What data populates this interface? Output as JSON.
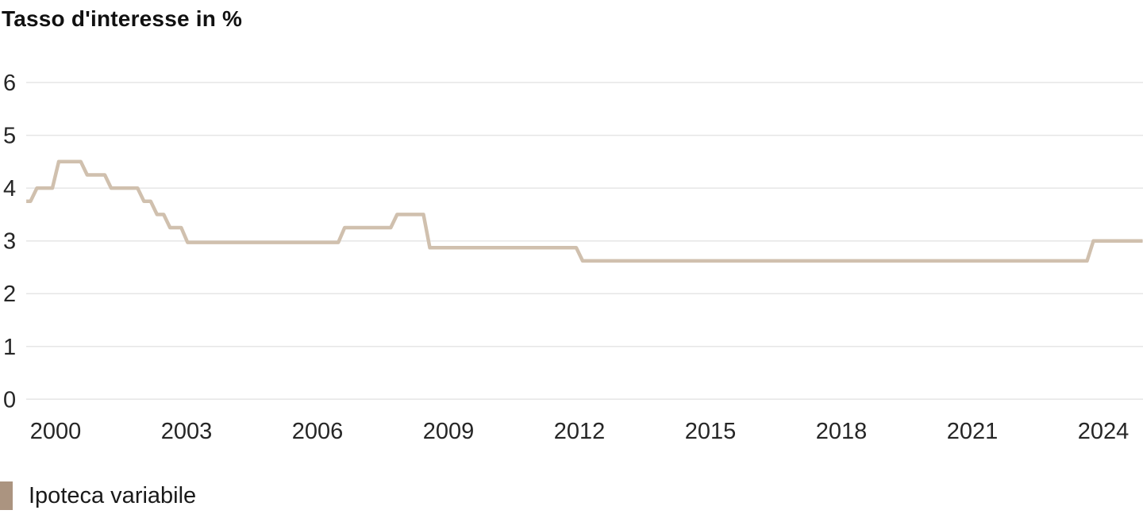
{
  "page": {
    "title": "Tasso d'interesse in %"
  },
  "chart_data": {
    "type": "line",
    "line_style": "step",
    "title": "Tasso d'interesse in %",
    "xlabel": "",
    "ylabel": "Tasso d'interesse in %",
    "ylim": [
      0,
      6
    ],
    "yticks": [
      0,
      1,
      2,
      3,
      4,
      5,
      6
    ],
    "xticks": [
      2000,
      2003,
      2006,
      2009,
      2012,
      2015,
      2018,
      2021,
      2024
    ],
    "xlim": [
      1999.33,
      2024.9
    ],
    "grid": "horizontal-only",
    "legend_position": "bottom-left",
    "series": [
      {
        "name": "Ipoteca variabile",
        "line_color": "#d0c0ae",
        "legend_color": "#ab9480",
        "steps": [
          [
            1999.33,
            3.75
          ],
          [
            1999.5,
            4.0
          ],
          [
            2000.0,
            4.5
          ],
          [
            2000.65,
            4.25
          ],
          [
            2001.2,
            4.0
          ],
          [
            2001.95,
            3.75
          ],
          [
            2002.25,
            3.5
          ],
          [
            2002.55,
            3.25
          ],
          [
            2002.95,
            2.97
          ],
          [
            2006.55,
            3.25
          ],
          [
            2007.75,
            3.5
          ],
          [
            2008.5,
            2.87
          ],
          [
            2012.0,
            2.62
          ],
          [
            2023.7,
            3.0
          ]
        ],
        "end_year": 2024.9
      }
    ]
  },
  "legend": {
    "items": [
      {
        "label": "Ipoteca variabile",
        "color": "#ab9480"
      }
    ]
  },
  "colors": {
    "background": "#ffffff",
    "gridline": "#e6e6e6",
    "tick_text": "#262626",
    "title_text": "#111111",
    "line": "#d0c0ae",
    "legend_swatch": "#ab9480"
  }
}
